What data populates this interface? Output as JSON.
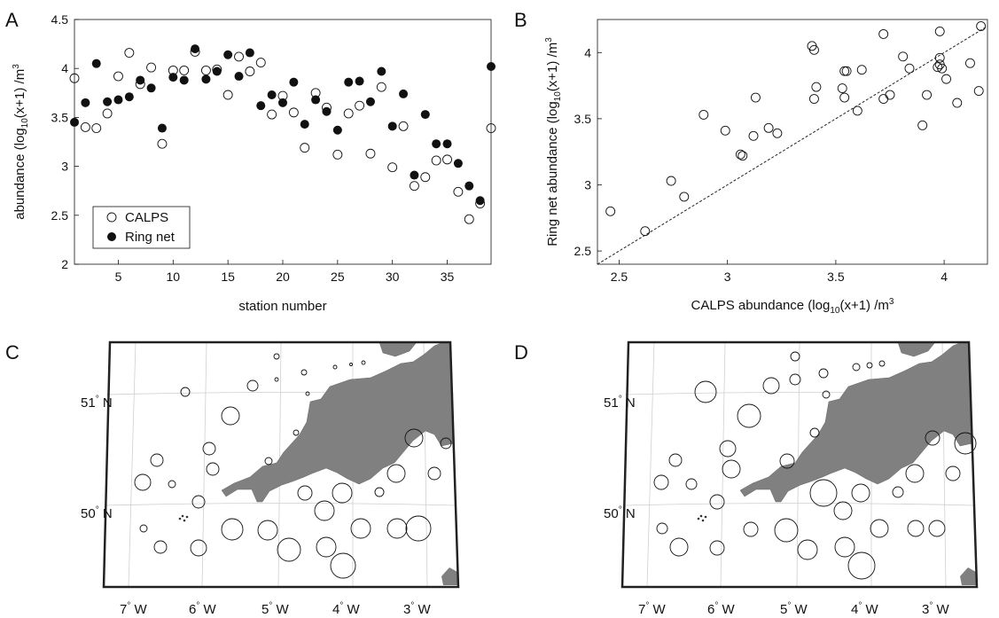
{
  "chart_data": [
    {
      "panel": "A",
      "type": "scatter",
      "xlabel": "station number",
      "ylabel": "abundance (log10(x+1) /m3",
      "xlim": [
        1,
        39
      ],
      "ylim": [
        2,
        4.5
      ],
      "xticks": [
        5,
        10,
        15,
        20,
        25,
        30,
        35
      ],
      "yticks": [
        2,
        2.5,
        3,
        3.5,
        4,
        4.5
      ],
      "legend_placement": "bottom-left",
      "grid": false,
      "series": [
        {
          "name": "CALPS",
          "marker": "open-circle",
          "points": [
            [
              1,
              3.9
            ],
            [
              2,
              3.4
            ],
            [
              3,
              3.39
            ],
            [
              4,
              3.54
            ],
            [
              5,
              3.92
            ],
            [
              6,
              4.16
            ],
            [
              7,
              3.84
            ],
            [
              8,
              4.01
            ],
            [
              9,
              3.23
            ],
            [
              10,
              3.98
            ],
            [
              11,
              3.98
            ],
            [
              12,
              4.17
            ],
            [
              13,
              3.98
            ],
            [
              14,
              3.99
            ],
            [
              15,
              3.73
            ],
            [
              16,
              4.12
            ],
            [
              17,
              3.97
            ],
            [
              18,
              4.06
            ],
            [
              19,
              3.53
            ],
            [
              20,
              3.72
            ],
            [
              21,
              3.55
            ],
            [
              22,
              3.19
            ],
            [
              23,
              3.75
            ],
            [
              24,
              3.6
            ],
            [
              25,
              3.12
            ],
            [
              26,
              3.54
            ],
            [
              27,
              3.62
            ],
            [
              28,
              3.13
            ],
            [
              29,
              3.81
            ],
            [
              30,
              2.99
            ],
            [
              31,
              3.41
            ],
            [
              32,
              2.8
            ],
            [
              33,
              2.89
            ],
            [
              34,
              3.06
            ],
            [
              35,
              3.07
            ],
            [
              36,
              2.74
            ],
            [
              37,
              2.46
            ],
            [
              38,
              2.62
            ],
            [
              39,
              3.39
            ]
          ]
        },
        {
          "name": "Ring net",
          "marker": "filled-circle",
          "points": [
            [
              1,
              3.45
            ],
            [
              2,
              3.65
            ],
            [
              3,
              4.05
            ],
            [
              4,
              3.66
            ],
            [
              5,
              3.68
            ],
            [
              6,
              3.71
            ],
            [
              7,
              3.88
            ],
            [
              8,
              3.8
            ],
            [
              9,
              3.39
            ],
            [
              10,
              3.91
            ],
            [
              11,
              3.88
            ],
            [
              12,
              4.2
            ],
            [
              13,
              3.89
            ],
            [
              14,
              3.97
            ],
            [
              15,
              4.14
            ],
            [
              16,
              3.92
            ],
            [
              17,
              4.16
            ],
            [
              18,
              3.62
            ],
            [
              19,
              3.73
            ],
            [
              20,
              3.65
            ],
            [
              21,
              3.86
            ],
            [
              22,
              3.43
            ],
            [
              23,
              3.68
            ],
            [
              24,
              3.56
            ],
            [
              25,
              3.37
            ],
            [
              26,
              3.86
            ],
            [
              27,
              3.87
            ],
            [
              28,
              3.66
            ],
            [
              29,
              3.97
            ],
            [
              30,
              3.41
            ],
            [
              31,
              3.74
            ],
            [
              32,
              2.91
            ],
            [
              33,
              3.53
            ],
            [
              34,
              3.23
            ],
            [
              35,
              3.23
            ],
            [
              36,
              3.03
            ],
            [
              37,
              2.8
            ],
            [
              38,
              2.65
            ],
            [
              39,
              4.02
            ]
          ]
        }
      ]
    },
    {
      "panel": "B",
      "type": "scatter",
      "xlabel": "CALPS abundance (log10(x+1) /m3",
      "ylabel": "Ring net abundance (log10(x+1) /m3",
      "xlim": [
        2.4,
        4.2
      ],
      "ylim": [
        2.4,
        4.25
      ],
      "xticks": [
        2.5,
        3,
        3.5,
        4
      ],
      "yticks": [
        2.5,
        3,
        3.5,
        4
      ],
      "reference_line": "1:1 dashed",
      "grid": false,
      "points": [
        [
          2.46,
          2.8
        ],
        [
          2.62,
          2.65
        ],
        [
          2.74,
          3.03
        ],
        [
          2.8,
          2.91
        ],
        [
          2.89,
          3.53
        ],
        [
          2.99,
          3.41
        ],
        [
          3.06,
          3.23
        ],
        [
          3.07,
          3.22
        ],
        [
          3.12,
          3.37
        ],
        [
          3.13,
          3.66
        ],
        [
          3.19,
          3.43
        ],
        [
          3.23,
          3.39
        ],
        [
          3.39,
          4.05
        ],
        [
          3.4,
          4.02
        ],
        [
          3.4,
          3.65
        ],
        [
          3.41,
          3.74
        ],
        [
          3.53,
          3.73
        ],
        [
          3.54,
          3.86
        ],
        [
          3.54,
          3.66
        ],
        [
          3.55,
          3.86
        ],
        [
          3.6,
          3.56
        ],
        [
          3.62,
          3.87
        ],
        [
          3.72,
          3.65
        ],
        [
          3.72,
          4.14
        ],
        [
          3.75,
          3.68
        ],
        [
          3.81,
          3.97
        ],
        [
          3.84,
          3.88
        ],
        [
          3.9,
          3.45
        ],
        [
          3.92,
          3.68
        ],
        [
          3.97,
          3.89
        ],
        [
          3.98,
          3.91
        ],
        [
          3.98,
          4.16
        ],
        [
          3.98,
          3.96
        ],
        [
          3.99,
          3.88
        ],
        [
          4.01,
          3.8
        ],
        [
          4.06,
          3.62
        ],
        [
          4.12,
          3.92
        ],
        [
          4.16,
          3.71
        ],
        [
          4.17,
          4.2
        ]
      ]
    },
    {
      "panel": "C",
      "type": "map",
      "lat_labels": [
        "51° N",
        "50° N"
      ],
      "lon_labels": [
        "7° W",
        "6° W",
        "5° W",
        "4° W",
        "3° W"
      ],
      "circles_represent": "CALPS abundance"
    },
    {
      "panel": "D",
      "type": "map",
      "lat_labels": [
        "51° N",
        "50° N"
      ],
      "lon_labels": [
        "7° W",
        "6° W",
        "5° W",
        "4° W",
        "3° W"
      ],
      "circles_represent": "Ring net abundance"
    }
  ],
  "panels": {
    "a_label": "A",
    "b_label": "B",
    "c_label": "C",
    "d_label": "D"
  },
  "a_axes": {
    "ylabel_pre": "abundance (log",
    "ylabel_sub": "10",
    "ylabel_mid": "(x+1) /m",
    "ylabel_sup": "3",
    "xlabel": "station number"
  },
  "b_axes": {
    "ylabel_pre": "Ring net abundance (log",
    "ylabel_sub": "10",
    "ylabel_mid": "(x+1) /m",
    "ylabel_sup": "3",
    "xlabel_pre": "CALPS abundance (log",
    "xlabel_sub": "10",
    "xlabel_mid": "(x+1) /m",
    "xlabel_sup": "3"
  },
  "legend": {
    "calps": "CALPS",
    "ring_net": "Ring net"
  },
  "map_labels": {
    "lat_51": "51",
    "lat_50": "50",
    "lon_7": "7",
    "lon_6": "6",
    "lon_5": "5",
    "lon_4": "4",
    "lon_3": "3",
    "deg": "°",
    "n": " N",
    "w": " W"
  },
  "colors": {
    "land": "#808080",
    "frame": "#222222",
    "marker": "#111111",
    "grid": "#d0d0d0"
  }
}
